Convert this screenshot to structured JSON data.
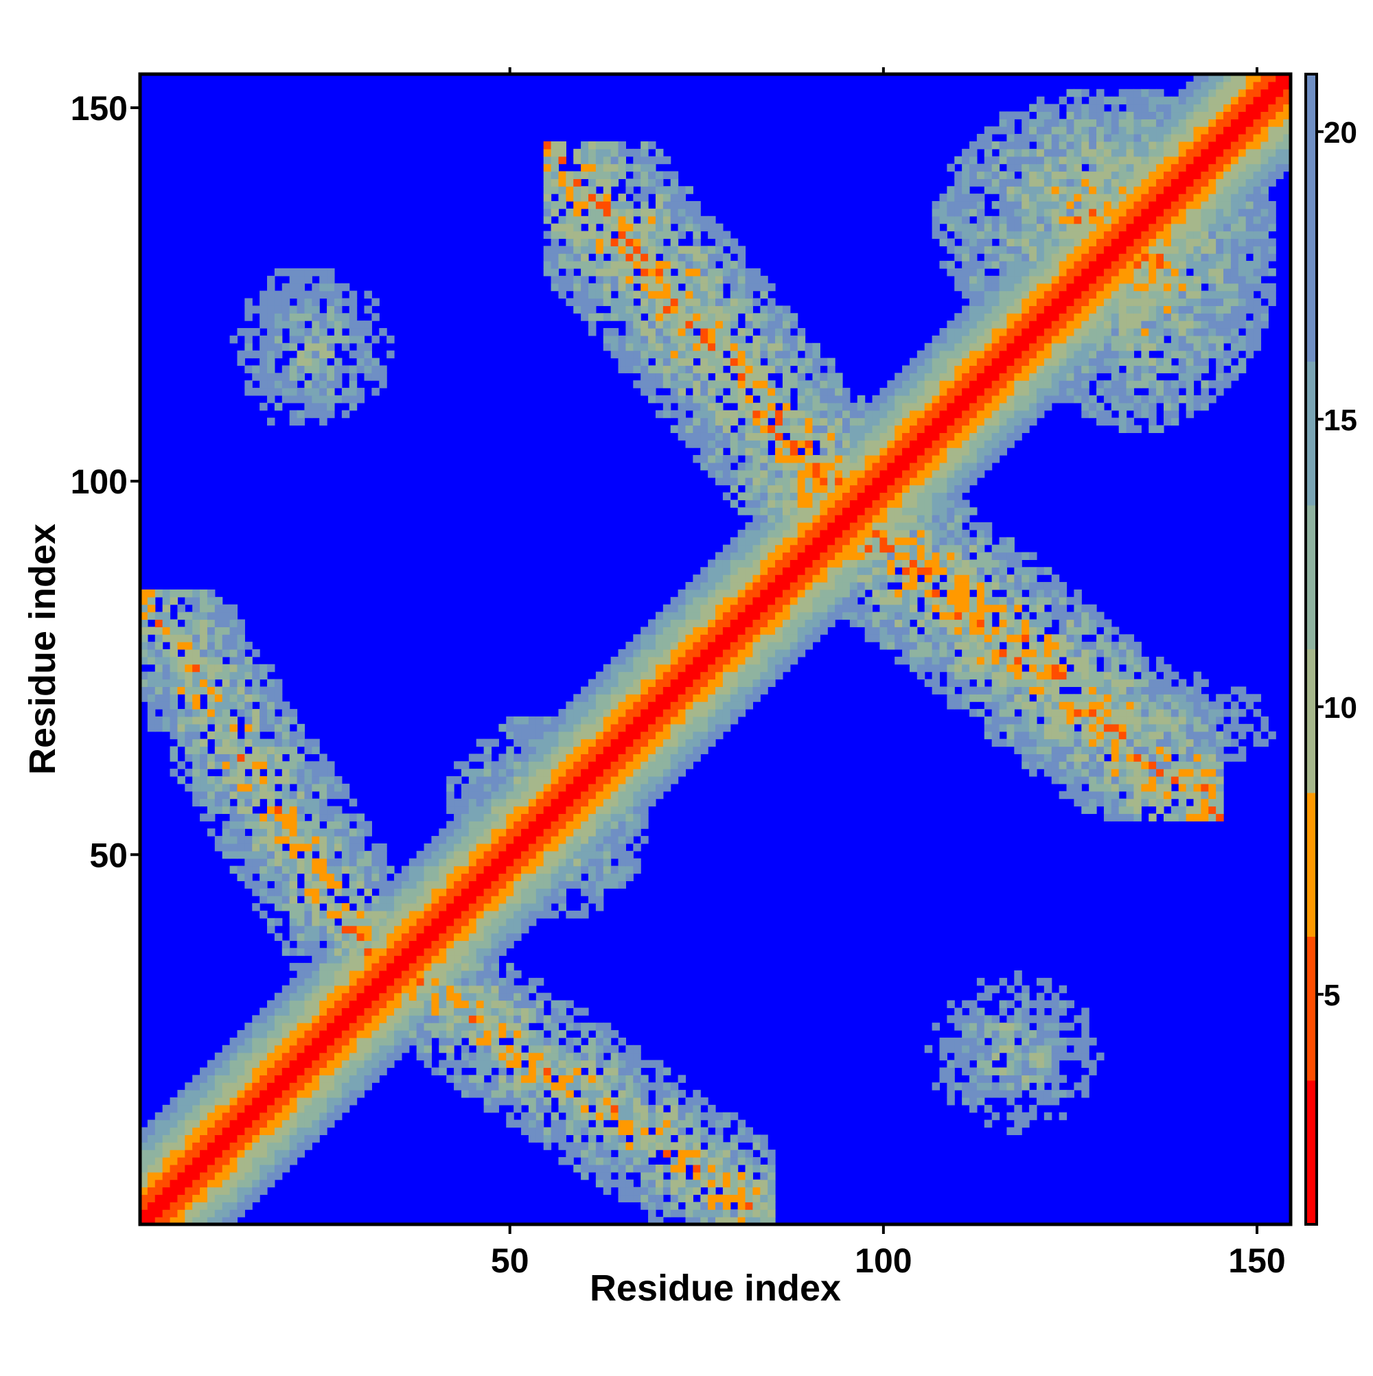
{
  "chart_data": {
    "type": "heatmap",
    "title": "",
    "xlabel": "Residue index",
    "ylabel": "Residue index",
    "n_residues": 154,
    "xlim": [
      1,
      154
    ],
    "ylim": [
      1,
      154
    ],
    "x_ticks": [
      50,
      100,
      150
    ],
    "y_ticks": [
      50,
      100,
      150
    ],
    "x_tick_labels": [
      "50",
      "100",
      "150"
    ],
    "y_tick_labels": [
      "50",
      "100",
      "150"
    ],
    "colorbar": {
      "position": "right",
      "range": [
        1,
        21
      ],
      "ticks": [
        5,
        10,
        15,
        20
      ],
      "tick_labels": [
        "5",
        "10",
        "15",
        "20"
      ],
      "colors": [
        {
          "from": 1,
          "to": 3.5,
          "color": "#ff0000"
        },
        {
          "from": 3.5,
          "to": 6,
          "color": "#ff4d00"
        },
        {
          "from": 6,
          "to": 8.5,
          "color": "#ff9900"
        },
        {
          "from": 8.5,
          "to": 11,
          "color": "#a6b78b"
        },
        {
          "from": 11,
          "to": 13.5,
          "color": "#8fb3a0"
        },
        {
          "from": 13.5,
          "to": 16,
          "color": "#7aa5b5"
        },
        {
          "from": 16,
          "to": 21,
          "color": "#6f8fc4"
        }
      ],
      "above_range_color": "#0000ff"
    },
    "diagonal": {
      "description_free": true,
      "core_value": 1,
      "band_half_width": 12
    },
    "contact_regions": [
      {
        "x": [
          1,
          35
        ],
        "y": [
          30,
          85
        ],
        "axis": "antiparallel",
        "strength": 9
      },
      {
        "x": [
          35,
          85
        ],
        "y": [
          1,
          35
        ],
        "axis": "antiparallel",
        "strength": 9
      },
      {
        "x": [
          55,
          100
        ],
        "y": [
          90,
          145
        ],
        "axis": "antiparallel",
        "strength": 8
      },
      {
        "x": [
          90,
          145
        ],
        "y": [
          55,
          100
        ],
        "axis": "antiparallel",
        "strength": 8
      },
      {
        "x": [
          12,
          35
        ],
        "y": [
          105,
          130
        ],
        "axis": "blob",
        "strength": 11
      },
      {
        "x": [
          105,
          130
        ],
        "y": [
          12,
          35
        ],
        "axis": "blob",
        "strength": 11
      },
      {
        "x": [
          105,
          154
        ],
        "y": [
          115,
          154
        ],
        "axis": "blob",
        "strength": 8
      },
      {
        "x": [
          115,
          154
        ],
        "y": [
          105,
          154
        ],
        "axis": "blob",
        "strength": 8
      },
      {
        "x": [
          40,
          70
        ],
        "y": [
          40,
          70
        ],
        "axis": "blob",
        "strength": 9
      },
      {
        "x": [
          118,
          154
        ],
        "y": [
          60,
          75
        ],
        "axis": "blob",
        "strength": 11
      }
    ]
  }
}
